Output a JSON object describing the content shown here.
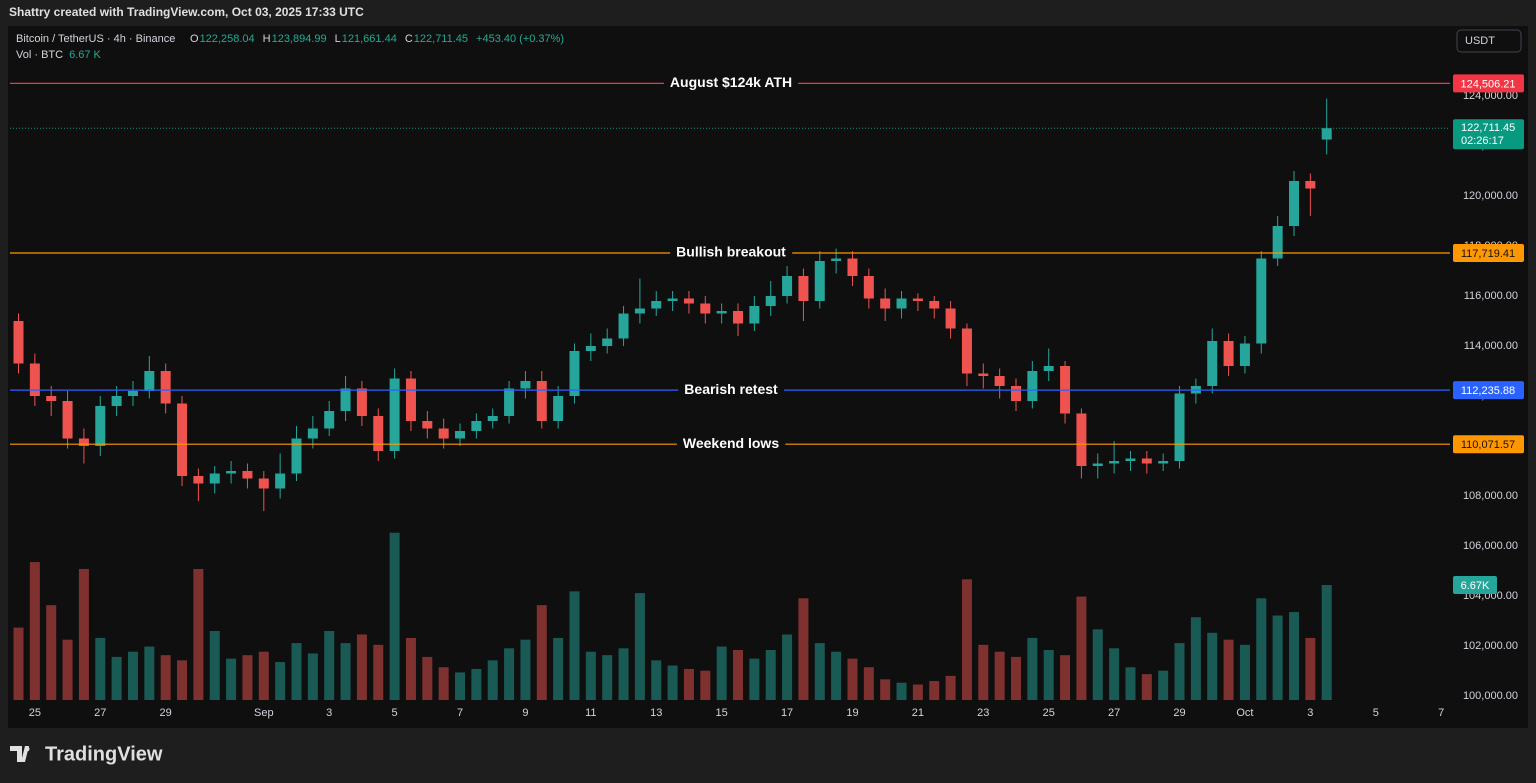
{
  "header": {
    "watermark": "Shattry created with TradingView.com, Oct 03, 2025 17:33 UTC",
    "symbol": "Bitcoin / TetherUS · 4h · Binance",
    "ohlc": [
      {
        "key": "O",
        "value": "122,258.04"
      },
      {
        "key": "H",
        "value": "123,894.99"
      },
      {
        "key": "L",
        "value": "121,661.44"
      },
      {
        "key": "C",
        "value": "122,711.45"
      }
    ],
    "change": "+453.40 (+0.37%)",
    "volume_legend": {
      "label": "Vol · BTC",
      "value": "6.67 K"
    },
    "currency": "USDT"
  },
  "footer": {
    "brand": "TradingView"
  },
  "chart_data": {
    "type": "candlestick",
    "up_color": "#26a69a",
    "down_color": "#ef5350",
    "x": [
      -0.5,
      0,
      0.5,
      1,
      1.5,
      2,
      2.5,
      3,
      3.5,
      4,
      4.5,
      5,
      5.5,
      6,
      6.5,
      7,
      7.5,
      8,
      8.5,
      9,
      9.5,
      10,
      10.5,
      11,
      11.5,
      12,
      12.5,
      13,
      13.5,
      14,
      14.5,
      15,
      15.5,
      16,
      16.5,
      17,
      17.5,
      18,
      18.5,
      19,
      19.5,
      20,
      20.5,
      21,
      21.5,
      22,
      22.5,
      23,
      23.5,
      24,
      24.5,
      25,
      25.5,
      26,
      26.5,
      27,
      27.5,
      28,
      28.5,
      29,
      29.5,
      30,
      30.5,
      31,
      31.5,
      32,
      32.5,
      33,
      33.5,
      34,
      34.5,
      35,
      35.5,
      36,
      36.5,
      37,
      37.5,
      38,
      38.5,
      39,
      39.5
    ],
    "open": [
      115000,
      113300,
      112000,
      111800,
      110300,
      110000,
      111600,
      112000,
      112200,
      113000,
      111700,
      108800,
      108500,
      108900,
      109000,
      108700,
      108300,
      108900,
      110300,
      110700,
      111400,
      112300,
      111200,
      109800,
      112700,
      111000,
      110700,
      110300,
      110600,
      111000,
      111200,
      112300,
      112600,
      111000,
      112000,
      113800,
      114000,
      114300,
      115300,
      115500,
      115800,
      115900,
      115700,
      115300,
      115400,
      114900,
      115600,
      116000,
      116800,
      115800,
      117400,
      117500,
      116800,
      115900,
      115500,
      115900,
      115800,
      115500,
      114700,
      112900,
      112800,
      112400,
      111800,
      113000,
      113200,
      111300,
      109200,
      109300,
      109400,
      109500,
      109300,
      109400,
      112100,
      112400,
      114200,
      113200,
      114100,
      117500,
      118800,
      120600,
      122258.04
    ],
    "high": [
      115300,
      113700,
      112400,
      112200,
      110700,
      112000,
      112400,
      112600,
      113600,
      113300,
      112000,
      109100,
      109200,
      109400,
      109300,
      109000,
      109700,
      110800,
      111200,
      111800,
      112800,
      112600,
      111500,
      113100,
      113000,
      111400,
      111100,
      110900,
      111300,
      111500,
      112600,
      113000,
      113000,
      112400,
      114100,
      114500,
      114700,
      115600,
      116700,
      116200,
      116200,
      116200,
      116000,
      115700,
      115700,
      116000,
      116600,
      117200,
      117100,
      117800,
      117900,
      117800,
      117100,
      116300,
      116200,
      116100,
      116000,
      115800,
      114900,
      113300,
      113100,
      112700,
      113400,
      113900,
      113400,
      111500,
      109700,
      110200,
      109800,
      109800,
      109700,
      112400,
      112700,
      114700,
      114500,
      114400,
      117800,
      119200,
      121000,
      120900,
      123894.99
    ],
    "low": [
      112900,
      111600,
      111200,
      109900,
      109300,
      109600,
      111200,
      111600,
      111900,
      111300,
      108400,
      107800,
      108100,
      108500,
      108300,
      107400,
      107900,
      108600,
      109900,
      110400,
      111000,
      110800,
      109400,
      109500,
      110600,
      110300,
      109900,
      110000,
      110300,
      110700,
      110900,
      111900,
      110700,
      110700,
      111700,
      113400,
      113700,
      114000,
      114900,
      115200,
      115400,
      115300,
      114900,
      114900,
      114400,
      114600,
      115200,
      115700,
      115000,
      115500,
      116900,
      116400,
      115500,
      115000,
      115100,
      115400,
      115100,
      114300,
      112400,
      112300,
      111900,
      111400,
      111500,
      112600,
      110900,
      108700,
      108700,
      108900,
      109000,
      108900,
      109000,
      109100,
      111700,
      112100,
      112800,
      112900,
      113700,
      117200,
      118400,
      119200,
      121661.44
    ],
    "close": [
      113300,
      112000,
      111800,
      110300,
      110000,
      111600,
      112000,
      112200,
      113000,
      111700,
      108800,
      108500,
      108900,
      109000,
      108700,
      108300,
      108900,
      110300,
      110700,
      111400,
      112300,
      111200,
      109800,
      112700,
      111000,
      110700,
      110300,
      110600,
      111000,
      111200,
      112300,
      112600,
      111000,
      112000,
      113800,
      114000,
      114300,
      115300,
      115500,
      115800,
      115900,
      115700,
      115300,
      115400,
      114900,
      115600,
      116000,
      116800,
      115800,
      117400,
      117500,
      116800,
      115900,
      115500,
      115900,
      115800,
      115500,
      114700,
      112900,
      112800,
      112400,
      111800,
      113000,
      113200,
      111300,
      109200,
      109300,
      109400,
      109500,
      109300,
      109400,
      112100,
      112400,
      114200,
      113200,
      114100,
      117500,
      118800,
      120600,
      120300,
      122711.45
    ],
    "volume": [
      4200,
      8000,
      5500,
      3500,
      7600,
      3600,
      2500,
      2800,
      3100,
      2600,
      2300,
      7600,
      4000,
      2400,
      2600,
      2800,
      2200,
      3300,
      2700,
      4000,
      3300,
      3800,
      3200,
      9700,
      3600,
      2500,
      1900,
      1600,
      1800,
      2300,
      3000,
      3500,
      5500,
      3600,
      6300,
      2800,
      2600,
      3000,
      6200,
      2300,
      2000,
      1800,
      1700,
      3100,
      2900,
      2400,
      2900,
      3800,
      5900,
      3300,
      2800,
      2400,
      1900,
      1200,
      1000,
      900,
      1100,
      1400,
      7000,
      3200,
      2800,
      2500,
      3600,
      2900,
      2600,
      6000,
      4100,
      3000,
      1900,
      1500,
      1700,
      3300,
      4800,
      3900,
      3500,
      3200,
      5900,
      4900,
      5100,
      3600,
      6670
    ],
    "volume_tag": {
      "value": 6670,
      "label": "6.67K"
    },
    "vlim": [
      0,
      11600
    ],
    "xlim": [
      -0.76,
      43.27
    ],
    "xticks": [
      {
        "value": 0,
        "label": "25"
      },
      {
        "value": 2,
        "label": "27"
      },
      {
        "value": 4,
        "label": "29"
      },
      {
        "value": 7,
        "label": "Sep"
      },
      {
        "value": 9,
        "label": "3"
      },
      {
        "value": 11,
        "label": "5"
      },
      {
        "value": 13,
        "label": "7"
      },
      {
        "value": 15,
        "label": "9"
      },
      {
        "value": 17,
        "label": "11"
      },
      {
        "value": 19,
        "label": "13"
      },
      {
        "value": 21,
        "label": "15"
      },
      {
        "value": 23,
        "label": "17"
      },
      {
        "value": 25,
        "label": "19"
      },
      {
        "value": 27,
        "label": "21"
      },
      {
        "value": 29,
        "label": "23"
      },
      {
        "value": 31,
        "label": "25"
      },
      {
        "value": 33,
        "label": "27"
      },
      {
        "value": 35,
        "label": "29"
      },
      {
        "value": 37,
        "label": "Oct"
      },
      {
        "value": 39,
        "label": "3"
      },
      {
        "value": 41,
        "label": "5"
      },
      {
        "value": 43,
        "label": "7"
      }
    ],
    "ylim": [
      99840,
      126800
    ],
    "yticks": [
      {
        "value": 100000,
        "label": "100,000.00"
      },
      {
        "value": 102000,
        "label": "102,000.00"
      },
      {
        "value": 104000,
        "label": "104,000.00"
      },
      {
        "value": 106000,
        "label": "106,000.00"
      },
      {
        "value": 108000,
        "label": "108,000.00"
      },
      {
        "value": 110000,
        "label": "110,000.00"
      },
      {
        "value": 112000,
        "label": "112,000.00"
      },
      {
        "value": 114000,
        "label": "114,000.00"
      },
      {
        "value": 116000,
        "label": "116,000.00"
      },
      {
        "value": 118000,
        "label": "118,000.00"
      },
      {
        "value": 120000,
        "label": "120,000.00"
      },
      {
        "value": 122000,
        "label": "122,000.00"
      },
      {
        "value": 124000,
        "label": "124,000.00"
      }
    ],
    "levels": [
      {
        "name": "August $124k ATH",
        "value": 124506.21,
        "label": "124,506.21",
        "color": "#f23645",
        "text_color": "#ffffff"
      },
      {
        "name": "Bullish breakout",
        "value": 117719.41,
        "label": "117,719.41",
        "color": "#ff9800",
        "text_color": "#131313"
      },
      {
        "name": "Bearish retest",
        "value": 112235.88,
        "label": "112,235.88",
        "color": "#2962ff",
        "text_color": "#ffffff"
      },
      {
        "name": "Weekend lows",
        "value": 110071.57,
        "label": "110,071.57",
        "color": "#ff9800",
        "text_color": "#131313"
      }
    ],
    "current_price": {
      "value": 122711.45,
      "label": "122,711.45",
      "countdown": "02:26:17",
      "color": "#089981"
    }
  }
}
